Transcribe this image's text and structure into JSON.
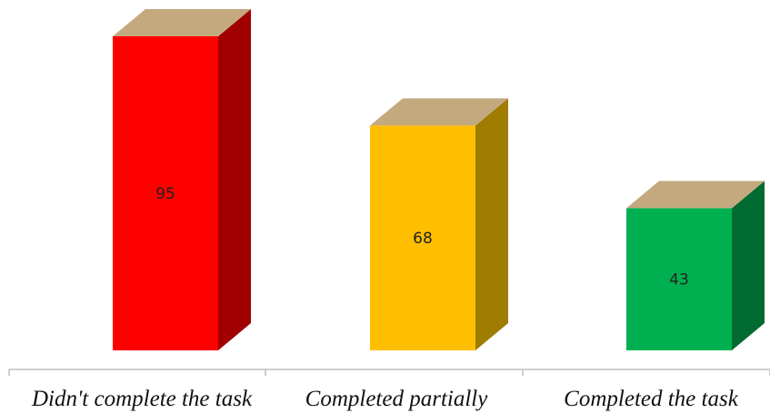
{
  "chart_data": {
    "type": "bar",
    "style": "3d-column",
    "categories": [
      "Didn't complete the task",
      "Completed partially",
      "Completed the task"
    ],
    "values": [
      95,
      68,
      43
    ],
    "data_labels": [
      "95",
      "68",
      "43"
    ],
    "ylim": [
      0,
      95
    ],
    "grid": false,
    "legend": "none",
    "colors": {
      "bars": [
        {
          "front": "#ff0000",
          "side": "#a00000"
        },
        {
          "front": "#ffbf00",
          "side": "#a07c00"
        },
        {
          "front": "#00b050",
          "side": "#006b30"
        }
      ],
      "top": "#c4a97f",
      "axis": "#bfbfbf"
    }
  }
}
